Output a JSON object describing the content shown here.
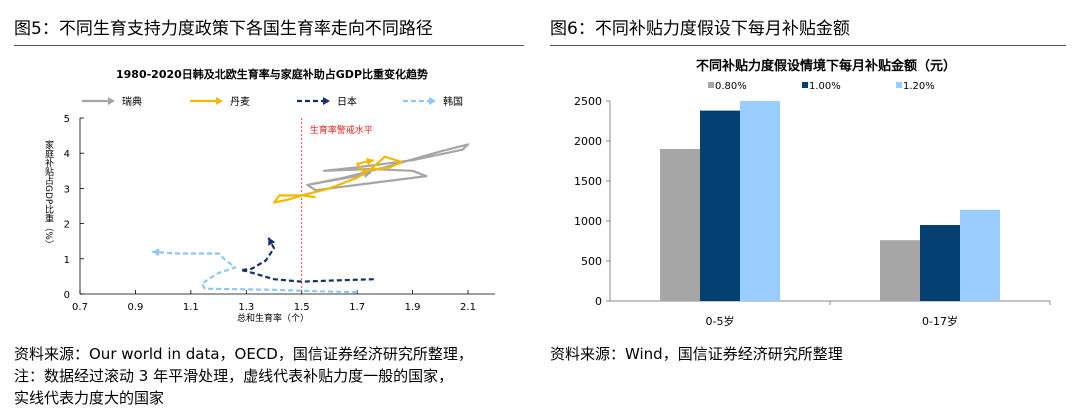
{
  "left": {
    "figure_title": "图5：不同生育支持力度政策下各国生育率走向不同路径",
    "notes": [
      "资料来源：Our world in data，OECD，国信证券经济研究所整理，",
      "注：数据经过滚动 3 年平滑处理，虚线代表补贴力度一般的国家，",
      "实线代表力度大的国家"
    ]
  },
  "right": {
    "figure_title": "图6：不同补贴力度假设下每月补贴金额",
    "notes": [
      "资料来源：Wind，国信证券经济研究所整理"
    ]
  },
  "chart_data": [
    {
      "type": "line",
      "title": "1980-2020日韩及北欧生育率与家庭补助占GDP比重变化趋势",
      "xlabel": "总和生育率（个）",
      "ylabel": "家庭补贴占GDP比重（%）",
      "xlim": [
        0.7,
        2.25
      ],
      "ylim": [
        0,
        5
      ],
      "xticks": [
        "0.7",
        "0.9",
        "1.1",
        "1.3",
        "1.5",
        "1.7",
        "1.9",
        "2.1"
      ],
      "yticks": [
        "0",
        "1",
        "2",
        "3",
        "4",
        "5"
      ],
      "annotation": {
        "x": 1.5,
        "label": "生育率警戒水平",
        "color": "#e02020"
      },
      "series": [
        {
          "name": "瑞典",
          "color": "#a6a6a6",
          "dash": false,
          "points": [
            [
              1.52,
              3.1
            ],
            [
              1.65,
              3.3
            ],
            [
              1.8,
              3.6
            ],
            [
              2.0,
              4.05
            ],
            [
              2.1,
              4.25
            ],
            [
              2.08,
              4.1
            ],
            [
              1.9,
              3.8
            ],
            [
              1.7,
              3.6
            ],
            [
              1.58,
              3.5
            ],
            [
              1.75,
              3.55
            ],
            [
              1.9,
              3.5
            ],
            [
              1.95,
              3.35
            ],
            [
              1.75,
              3.15
            ],
            [
              1.55,
              2.95
            ],
            [
              1.52,
              3.1
            ],
            [
              1.7,
              3.35
            ],
            [
              1.75,
              3.45
            ]
          ]
        },
        {
          "name": "丹麦",
          "color": "#f5b800",
          "dash": false,
          "points": [
            [
              1.55,
              2.75
            ],
            [
              1.5,
              2.8
            ],
            [
              1.45,
              2.68
            ],
            [
              1.4,
              2.6
            ],
            [
              1.42,
              2.8
            ],
            [
              1.5,
              2.8
            ],
            [
              1.6,
              3.0
            ],
            [
              1.7,
              3.3
            ],
            [
              1.75,
              3.55
            ],
            [
              1.8,
              3.9
            ],
            [
              1.86,
              3.75
            ],
            [
              1.82,
              3.6
            ],
            [
              1.72,
              3.5
            ],
            [
              1.7,
              3.7
            ],
            [
              1.76,
              3.8
            ]
          ]
        },
        {
          "name": "日本",
          "color": "#14306a",
          "dash": true,
          "points": [
            [
              1.76,
              0.42
            ],
            [
              1.6,
              0.38
            ],
            [
              1.5,
              0.35
            ],
            [
              1.4,
              0.42
            ],
            [
              1.3,
              0.65
            ],
            [
              1.28,
              0.68
            ],
            [
              1.32,
              0.72
            ],
            [
              1.37,
              0.95
            ],
            [
              1.4,
              1.3
            ],
            [
              1.38,
              1.6
            ]
          ]
        },
        {
          "name": "韩国",
          "color": "#8cc8f5",
          "dash": true,
          "points": [
            [
              1.7,
              0.05
            ],
            [
              1.55,
              0.08
            ],
            [
              1.4,
              0.12
            ],
            [
              1.15,
              0.15
            ],
            [
              1.14,
              0.3
            ],
            [
              1.2,
              0.6
            ],
            [
              1.26,
              0.75
            ],
            [
              1.22,
              1.0
            ],
            [
              1.2,
              1.15
            ],
            [
              1.05,
              1.15
            ],
            [
              0.96,
              1.2
            ]
          ]
        }
      ]
    },
    {
      "type": "bar",
      "title": "不同补贴力度假设情境下每月补贴金额（元）",
      "categories": [
        "0-5岁",
        "0-17岁"
      ],
      "ylim": [
        0,
        2500
      ],
      "yticks": [
        "0",
        "500",
        "1000",
        "1500",
        "2000",
        "2500"
      ],
      "series": [
        {
          "name": "0.80%",
          "color": "#a6a6a6",
          "values": [
            1900,
            760
          ]
        },
        {
          "name": "1.00%",
          "color": "#054073",
          "values": [
            2380,
            950
          ]
        },
        {
          "name": "1.20%",
          "color": "#99ccff",
          "values": [
            2500,
            1140
          ]
        }
      ]
    }
  ]
}
